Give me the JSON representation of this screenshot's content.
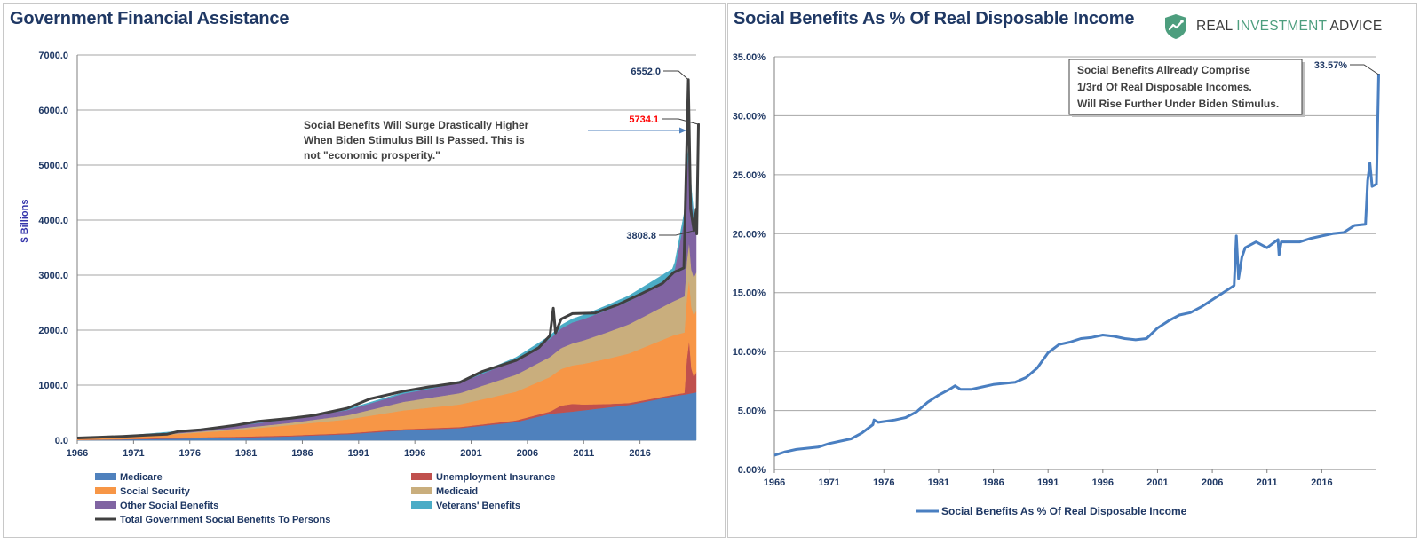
{
  "brand": {
    "name_part1": "REAL ",
    "name_accent": "INVESTMENT",
    "name_part2": " ADVICE",
    "icon": "shield-chart-icon",
    "color": "#4d9e7e"
  },
  "chart_data": [
    {
      "type": "area",
      "title": "Government Financial Assistance",
      "ylabel": "$ Billions",
      "ylim": [
        0,
        7000
      ],
      "yticks": [
        "0.0",
        "1000.0",
        "2000.0",
        "3000.0",
        "4000.0",
        "5000.0",
        "6000.0",
        "7000.0"
      ],
      "xlim": [
        1966,
        2021
      ],
      "xticks": [
        "1966",
        "1971",
        "1976",
        "1981",
        "1986",
        "1991",
        "1996",
        "2001",
        "2006",
        "2011",
        "2016"
      ],
      "grid": true,
      "legend_position": "bottom",
      "series": [
        {
          "name": "Medicare",
          "color": "#4f81bd",
          "x": [
            1966,
            1970,
            1975,
            1980,
            1985,
            1990,
            1995,
            2000,
            2005,
            2008,
            2010,
            2015,
            2019,
            2020,
            2021
          ],
          "values": [
            5,
            15,
            30,
            45,
            70,
            110,
            180,
            220,
            330,
            480,
            520,
            640,
            800,
            830,
            870
          ]
        },
        {
          "name": "Unemployment Insurance",
          "color": "#c0504d",
          "x": [
            1966,
            1970,
            1975,
            1980,
            1985,
            1990,
            1995,
            2000,
            2005,
            2008,
            2009,
            2010,
            2011,
            2013,
            2015,
            2019,
            2020,
            2020.3,
            2020.5,
            2020.75,
            2021
          ],
          "values": [
            2,
            4,
            18,
            18,
            17,
            18,
            22,
            20,
            31,
            40,
            130,
            140,
            105,
            65,
            35,
            28,
            30,
            1200,
            530,
            280,
            360
          ]
        },
        {
          "name": "Social Security",
          "color": "#f79646",
          "x": [
            1966,
            1970,
            1975,
            1980,
            1985,
            1990,
            1995,
            2000,
            2005,
            2010,
            2015,
            2019,
            2021
          ],
          "values": [
            20,
            33,
            65,
            120,
            190,
            250,
            340,
            410,
            520,
            700,
            900,
            1080,
            1120
          ]
        },
        {
          "name": "Medicaid",
          "color": "#c9ae7d",
          "x": [
            1966,
            1970,
            1975,
            1980,
            1985,
            1990,
            1995,
            2000,
            2005,
            2010,
            2015,
            2019,
            2021
          ],
          "values": [
            2,
            6,
            14,
            26,
            40,
            74,
            155,
            205,
            310,
            400,
            530,
            620,
            700
          ]
        },
        {
          "name": "Other Social Benefits",
          "color": "#8064a2",
          "x": [
            1966,
            1970,
            1975,
            1980,
            1985,
            1990,
            1995,
            2000,
            2005,
            2008,
            2010,
            2015,
            2019,
            2020.3,
            2021
          ],
          "values": [
            5,
            9,
            22,
            50,
            70,
            95,
            150,
            185,
            270,
            330,
            380,
            420,
            480,
            1750,
            700
          ]
        },
        {
          "name": "Veterans' Benefits",
          "color": "#4bacc6",
          "x": [
            1966,
            1975,
            1985,
            1995,
            2005,
            2010,
            2015,
            2019,
            2021
          ],
          "values": [
            5,
            15,
            17,
            20,
            45,
            65,
            100,
            120,
            130
          ]
        }
      ],
      "total": {
        "name": "Total Government Social Benefits To Persons",
        "color": "#404040",
        "x": [
          1966,
          1968,
          1970,
          1972,
          1974,
          1975,
          1977,
          1980,
          1982,
          1985,
          1987,
          1990,
          1992,
          1995,
          1997,
          2000,
          2002,
          2005,
          2007,
          2008,
          2008.3,
          2008.5,
          2009,
          2010,
          2012,
          2014,
          2016,
          2018,
          2019,
          2019.9,
          2020.3,
          2020.5,
          2020.8,
          2021,
          2021.05,
          2021.2,
          2021.3
        ],
        "values": [
          40,
          55,
          70,
          90,
          110,
          160,
          190,
          270,
          340,
          400,
          450,
          580,
          750,
          890,
          960,
          1050,
          1250,
          1450,
          1680,
          1900,
          2400,
          1950,
          2200,
          2300,
          2310,
          2460,
          2650,
          2850,
          3050,
          3130,
          6552,
          4200,
          3808.8,
          4200,
          3750,
          5734.1,
          5734.1
        ]
      },
      "annotations": [
        {
          "text": "6552.0",
          "x": 2020.3,
          "y": 6552
        },
        {
          "text": "5734.1",
          "x": 2021.3,
          "y": 5734.1,
          "color": "#ff0000"
        },
        {
          "text": "3808.8",
          "x": 2020.8,
          "y": 3808.8
        }
      ],
      "callout": [
        "Social Benefits Will Surge Drastically Higher",
        "When Biden Stimulus Bill Is Passed.  This is",
        "not \"economic prosperity.\""
      ]
    },
    {
      "type": "line",
      "title": "Social Benefits As % Of Real Disposable Income",
      "ylim": [
        0,
        35
      ],
      "yticks": [
        "0.00%",
        "5.00%",
        "10.00%",
        "15.00%",
        "20.00%",
        "25.00%",
        "30.00%",
        "35.00%"
      ],
      "xlim": [
        1966,
        2021
      ],
      "xticks": [
        "1966",
        "1971",
        "1976",
        "1981",
        "1986",
        "1991",
        "1996",
        "2001",
        "2006",
        "2011",
        "2016"
      ],
      "grid": true,
      "legend_position": "bottom",
      "series": [
        {
          "name": "Social Benefits As % Of Real Disposable Income",
          "color": "#4a7fc1",
          "x": [
            1966,
            1967,
            1968,
            1970,
            1971,
            1972,
            1973,
            1974,
            1975,
            1975.1,
            1975.5,
            1977,
            1978,
            1979,
            1980,
            1981,
            1982,
            1982.5,
            1983,
            1984,
            1985,
            1986,
            1987,
            1988,
            1989,
            1990,
            1991,
            1992,
            1993,
            1994,
            1995,
            1996,
            1997,
            1998,
            1999,
            2000,
            2001,
            2002,
            2003,
            2004,
            2005,
            2006,
            2007,
            2008,
            2008.2,
            2008.4,
            2008.7,
            2009,
            2010,
            2011,
            2012,
            2012.1,
            2012.3,
            2014,
            2015,
            2016,
            2017,
            2018,
            2019,
            2020,
            2020.2,
            2020.4,
            2020.6,
            2021,
            2021.2
          ],
          "values": [
            1.2,
            1.5,
            1.7,
            1.9,
            2.2,
            2.4,
            2.6,
            3.1,
            3.8,
            4.2,
            4.0,
            4.2,
            4.4,
            4.9,
            5.7,
            6.3,
            6.8,
            7.1,
            6.8,
            6.8,
            7.0,
            7.2,
            7.3,
            7.4,
            7.8,
            8.6,
            9.9,
            10.6,
            10.8,
            11.1,
            11.2,
            11.4,
            11.3,
            11.1,
            11.0,
            11.1,
            12.0,
            12.6,
            13.1,
            13.3,
            13.8,
            14.4,
            15.0,
            15.6,
            19.8,
            16.2,
            18.0,
            18.8,
            19.3,
            18.8,
            19.5,
            18.2,
            19.3,
            19.3,
            19.6,
            19.8,
            20.0,
            20.1,
            20.7,
            20.8,
            24.5,
            26.0,
            24.0,
            24.2,
            33.57
          ]
        }
      ],
      "annotations": [
        {
          "text": "33.57%",
          "x": 2021.2,
          "y": 33.57
        }
      ],
      "callout": [
        "Social Benefits Allready Comprise",
        "1/3rd Of Real Disposable Incomes.",
        "Will Rise Further Under Biden Stimulus."
      ]
    }
  ]
}
